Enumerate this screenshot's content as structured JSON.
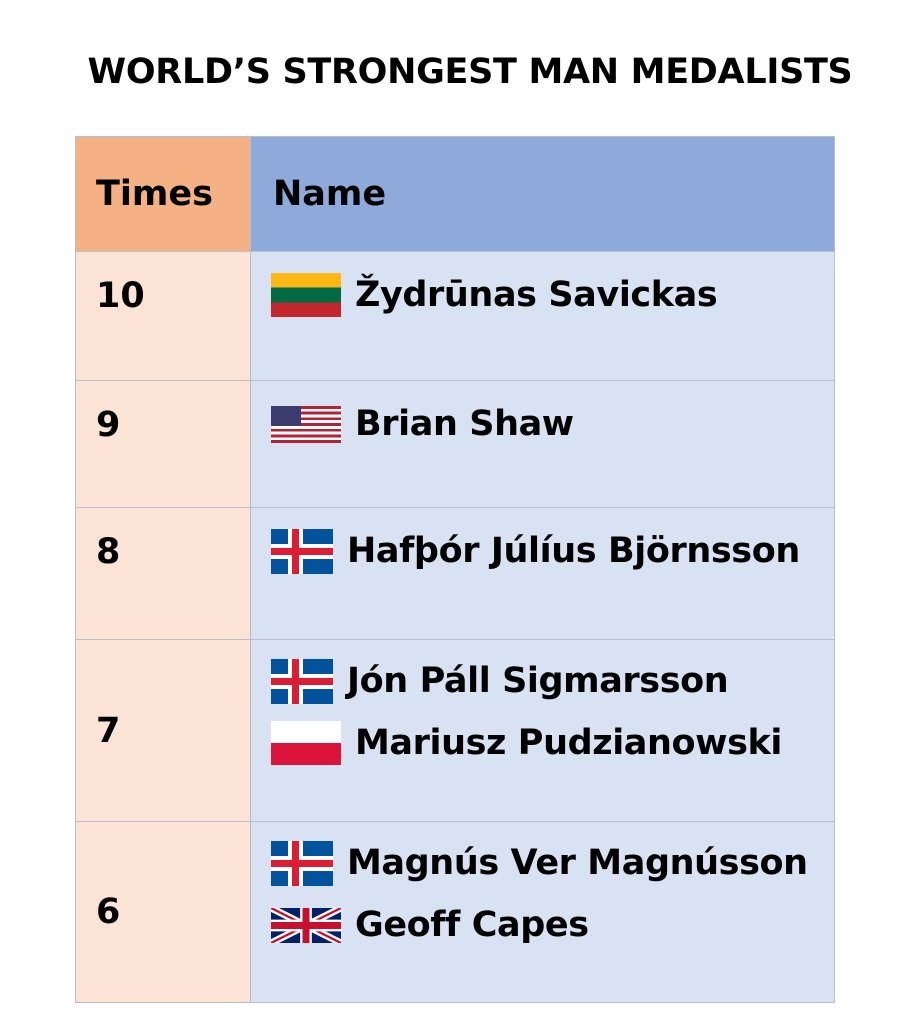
{
  "title": "WORLD’S STRONGEST MAN MEDALISTS",
  "table": {
    "headers": {
      "times": "Times",
      "name": "Name"
    },
    "rows": [
      {
        "times": "10",
        "entries": [
          {
            "name": "Žydrūnas Savickas",
            "flag": "lithuania-flag"
          }
        ]
      },
      {
        "times": "9",
        "entries": [
          {
            "name": "Brian Shaw",
            "flag": "usa-flag"
          }
        ]
      },
      {
        "times": "8",
        "entries": [
          {
            "name": "Hafþór Júlíus Björnsson",
            "flag": "iceland-flag"
          }
        ]
      },
      {
        "times": "7",
        "entries": [
          {
            "name": "Jón Páll Sigmarsson",
            "flag": "iceland-flag"
          },
          {
            "name": "Mariusz Pudzianowski",
            "flag": "poland-flag"
          }
        ]
      },
      {
        "times": "6",
        "entries": [
          {
            "name": "Magnús Ver Magnússon",
            "flag": "iceland-flag"
          },
          {
            "name": "Geoff Capes",
            "flag": "uk-flag"
          }
        ]
      }
    ]
  },
  "colors": {
    "times_header": "#f4b183",
    "name_header": "#8eaadb",
    "times_cell": "#fbe4d5",
    "name_cell": "#d9e2f3"
  }
}
